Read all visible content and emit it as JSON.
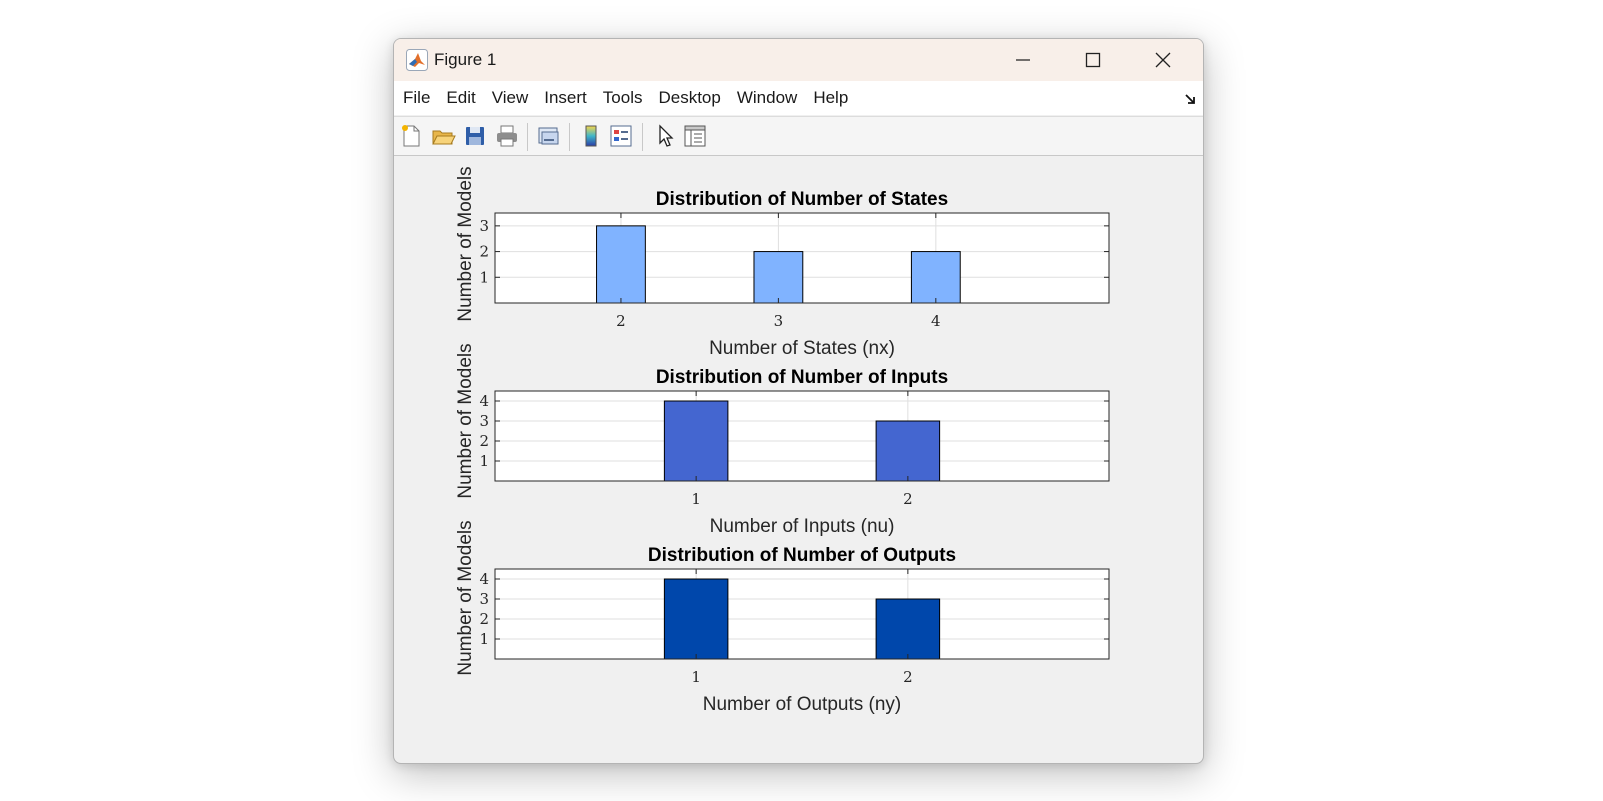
{
  "window": {
    "title": "Figure 1",
    "icons": {
      "app": "matlab-logo-icon",
      "minimize": "minimize-icon",
      "maximize": "maximize-icon",
      "close": "close-icon"
    }
  },
  "menubar": {
    "items": [
      "File",
      "Edit",
      "View",
      "Insert",
      "Tools",
      "Desktop",
      "Window",
      "Help"
    ],
    "corner_icon": "dock-arrow-icon"
  },
  "toolbar": {
    "buttons": [
      "new-figure-icon",
      "open-file-icon",
      "save-icon",
      "print-icon",
      "link-plot-icon",
      "colorbar-icon",
      "legend-icon",
      "pointer-icon",
      "property-inspector-icon"
    ]
  },
  "shared_ylabel": "Number of Models",
  "chart_data": [
    {
      "type": "bar",
      "title": "Distribution of Number of States",
      "xlabel": "Number of States (nx)",
      "ylabel": "Number of Models",
      "categories": [
        "2",
        "3",
        "4"
      ],
      "x": [
        2,
        3,
        4
      ],
      "values": [
        3,
        2,
        2
      ],
      "xlim": [
        1.2,
        5.1
      ],
      "ylim": [
        0,
        3.5
      ],
      "yticks": [
        1,
        2,
        3
      ],
      "grid": true,
      "color": "#80b3ff"
    },
    {
      "type": "bar",
      "title": "Distribution of Number of Inputs",
      "xlabel": "Number of Inputs (nu)",
      "ylabel": "Number of Models",
      "categories": [
        "1",
        "2"
      ],
      "x": [
        1,
        2
      ],
      "values": [
        4,
        3
      ],
      "xlim": [
        0.05,
        2.95
      ],
      "ylim": [
        0,
        4.5
      ],
      "yticks": [
        1,
        2,
        3,
        4
      ],
      "grid": true,
      "color": "#4466d0"
    },
    {
      "type": "bar",
      "title": "Distribution of Number of Outputs",
      "xlabel": "Number of Outputs (ny)",
      "ylabel": "Number of Models",
      "categories": [
        "1",
        "2"
      ],
      "x": [
        1,
        2
      ],
      "values": [
        4,
        3
      ],
      "xlim": [
        0.05,
        2.95
      ],
      "ylim": [
        0,
        4.5
      ],
      "yticks": [
        1,
        2,
        3,
        4
      ],
      "grid": true,
      "color": "#0047ab"
    }
  ]
}
